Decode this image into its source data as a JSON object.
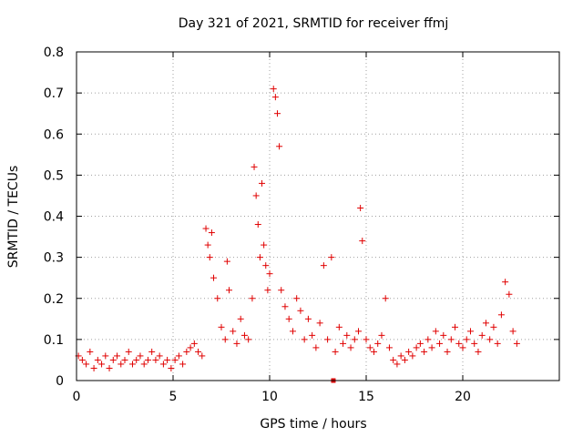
{
  "chart_data": {
    "type": "scatter",
    "title": "Day 321 of 2021, SRMTID for receiver ffmj",
    "xlabel": "GPS time / hours",
    "ylabel": "SRMTID / TECUs",
    "xlim": [
      0,
      25
    ],
    "ylim": [
      0,
      0.8
    ],
    "xticks": [
      0,
      5,
      10,
      15,
      20
    ],
    "yticks": [
      0,
      0.1,
      0.2,
      0.3,
      0.4,
      0.5,
      0.6,
      0.7,
      0.8
    ],
    "xtick_labels": [
      "0",
      "5",
      "10",
      "15",
      "20"
    ],
    "ytick_labels": [
      "0",
      "0.1",
      "0.2",
      "0.3",
      "0.4",
      "0.5",
      "0.6",
      "0.7",
      "0.8"
    ],
    "grid": true,
    "marker": "+",
    "color": "#e00000",
    "series": [
      {
        "name": "SRMTID",
        "x": [
          0.1,
          0.3,
          0.5,
          0.7,
          0.9,
          1.1,
          1.3,
          1.5,
          1.7,
          1.9,
          2.1,
          2.3,
          2.5,
          2.7,
          2.9,
          3.1,
          3.3,
          3.5,
          3.7,
          3.9,
          4.1,
          4.3,
          4.5,
          4.7,
          4.9,
          5.1,
          5.3,
          5.5,
          5.7,
          5.9,
          6.1,
          6.3,
          6.5,
          6.7,
          6.8,
          6.9,
          7.0,
          7.1,
          7.3,
          7.5,
          7.7,
          7.8,
          7.9,
          8.1,
          8.3,
          8.5,
          8.7,
          8.9,
          9.1,
          9.2,
          9.3,
          9.4,
          9.5,
          9.6,
          9.7,
          9.8,
          9.9,
          10.0,
          10.2,
          10.3,
          10.4,
          10.5,
          10.6,
          10.8,
          11.0,
          11.2,
          11.4,
          11.6,
          11.8,
          12.0,
          12.2,
          12.4,
          12.6,
          12.8,
          13.0,
          13.2,
          13.4,
          13.6,
          13.8,
          14.0,
          14.2,
          14.4,
          14.6,
          14.7,
          14.8,
          15.0,
          15.2,
          15.4,
          15.6,
          15.8,
          16.0,
          16.2,
          16.4,
          16.6,
          16.8,
          17.0,
          17.2,
          17.4,
          17.6,
          17.8,
          18.0,
          18.2,
          18.4,
          18.6,
          18.8,
          19.0,
          19.2,
          19.4,
          19.6,
          19.8,
          20.0,
          20.2,
          20.4,
          20.6,
          20.8,
          21.0,
          21.2,
          21.4,
          21.6,
          21.8,
          22.0,
          22.2,
          22.4,
          22.6,
          22.8
        ],
        "y": [
          0.06,
          0.05,
          0.04,
          0.07,
          0.03,
          0.05,
          0.04,
          0.06,
          0.03,
          0.05,
          0.06,
          0.04,
          0.05,
          0.07,
          0.04,
          0.05,
          0.06,
          0.04,
          0.05,
          0.07,
          0.05,
          0.06,
          0.04,
          0.05,
          0.03,
          0.05,
          0.06,
          0.04,
          0.07,
          0.08,
          0.09,
          0.07,
          0.06,
          0.37,
          0.33,
          0.3,
          0.36,
          0.25,
          0.2,
          0.13,
          0.1,
          0.29,
          0.22,
          0.12,
          0.09,
          0.15,
          0.11,
          0.1,
          0.2,
          0.52,
          0.45,
          0.38,
          0.3,
          0.48,
          0.33,
          0.28,
          0.22,
          0.26,
          0.71,
          0.69,
          0.65,
          0.57,
          0.22,
          0.18,
          0.15,
          0.12,
          0.2,
          0.17,
          0.1,
          0.15,
          0.11,
          0.08,
          0.14,
          0.28,
          0.1,
          0.3,
          0.07,
          0.13,
          0.09,
          0.11,
          0.08,
          0.1,
          0.12,
          0.42,
          0.34,
          0.1,
          0.08,
          0.07,
          0.09,
          0.11,
          0.2,
          0.08,
          0.05,
          0.04,
          0.06,
          0.05,
          0.07,
          0.06,
          0.08,
          0.09,
          0.07,
          0.1,
          0.08,
          0.12,
          0.09,
          0.11,
          0.07,
          0.1,
          0.13,
          0.09,
          0.08,
          0.1,
          0.12,
          0.09,
          0.07,
          0.11,
          0.14,
          0.1,
          0.13,
          0.09,
          0.16,
          0.24,
          0.21,
          0.12,
          0.09
        ],
        "rect_marks": [
          {
            "x": 13.3,
            "y": 0.0
          }
        ]
      }
    ]
  }
}
